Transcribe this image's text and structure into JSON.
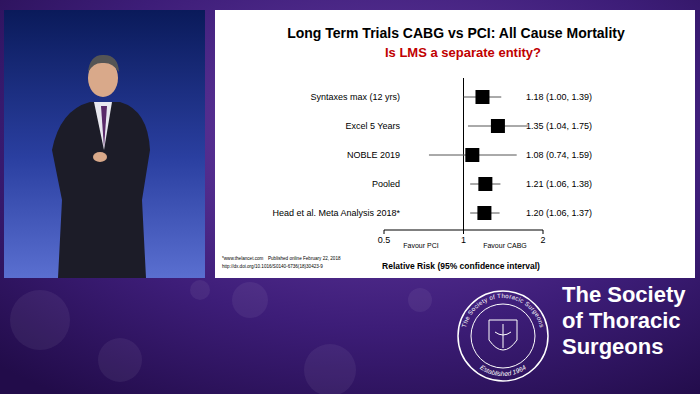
{
  "chart_data": {
    "type": "forest",
    "title": "Long Term Trials CABG vs PCI: All Cause Mortality",
    "subtitle": "Is LMS a separate entity?",
    "categories": [
      "Syntaxes max (12 yrs)",
      "Excel 5 Years",
      "NOBLE 2019",
      "Pooled",
      "Head et al. Meta Analysis 2018*"
    ],
    "values": [
      1.18,
      1.35,
      1.08,
      1.21,
      1.2
    ],
    "lower": [
      1.0,
      1.04,
      0.74,
      1.06,
      1.06
    ],
    "upper": [
      1.39,
      1.75,
      1.59,
      1.38,
      1.37
    ],
    "value_labels": [
      "1.18 (1.00, 1.39)",
      "1.35 (1.04, 1.75)",
      "1.08 (0.74, 1.59)",
      "1.21 (1.06, 1.38)",
      "1.20 (1.06, 1.37)"
    ],
    "color": "#000000",
    "data_labels": true,
    "log": "x",
    "xlim": [
      0.5,
      2
    ],
    "xticks": [
      0.5,
      1,
      2
    ],
    "x_label": "Relative Risk (95% confidence interval)",
    "favour_left": "Favour PCI",
    "favour_right": "Favour CABG",
    "footnote": [
      "*www.thelancet.com",
      "Published online February 22, 2018",
      "http://dx.doi.org/10.1016/S0140-6736(18)30423-9"
    ],
    "grid": false
  },
  "branding": {
    "name_lines": [
      "The Society",
      "of Thoracic",
      "Surgeons"
    ],
    "seal_top": "The Society of Thoracic Surgeons",
    "seal_bottom": "Established 1964"
  }
}
